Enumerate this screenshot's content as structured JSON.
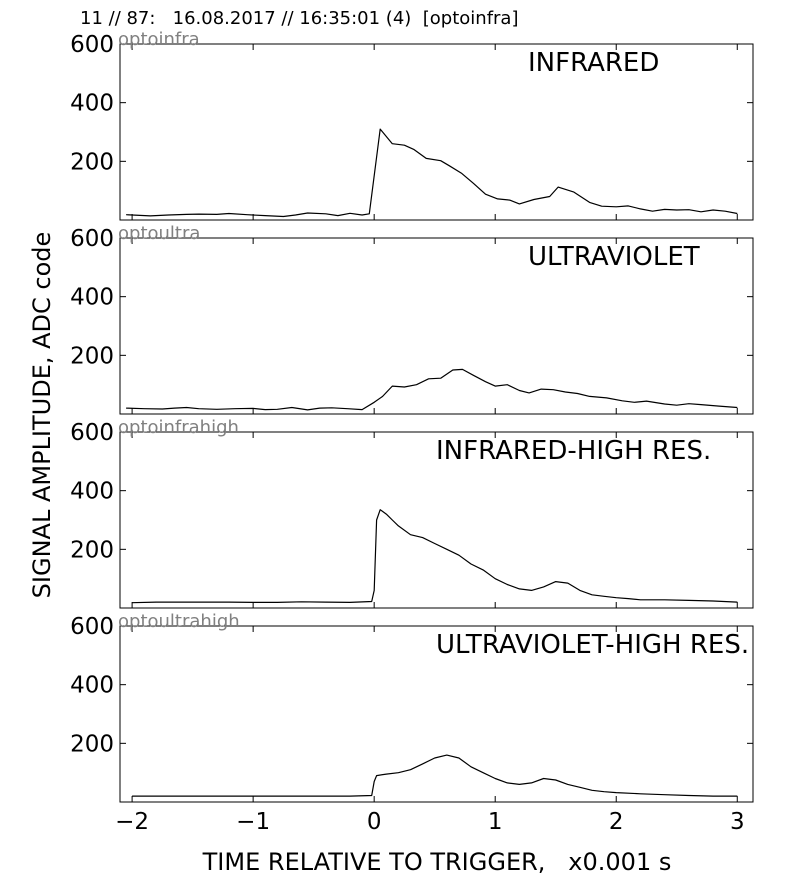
{
  "header": "11 // 87:   16.08.2017 // 16:35:01 (4)  [optoinfra]",
  "chart_data": {
    "type": "line",
    "xlabel": "TIME RELATIVE TO TRIGGER,   x0.001 s",
    "ylabel": "SIGNAL AMPLITUDE,  ADC code",
    "xlim": [
      -2.1,
      3.13
    ],
    "ylim": [
      0,
      600
    ],
    "xticks": [
      -2,
      -1,
      0,
      1,
      2,
      3
    ],
    "xtick_labels": [
      "−2",
      "−1",
      "0",
      "1",
      "2",
      "3"
    ],
    "yticks": [
      200,
      400,
      600
    ],
    "ytick_labels": [
      "200",
      "400",
      "600"
    ],
    "grid": false,
    "panels": [
      {
        "source": "optoinfra",
        "title": "INFRARED",
        "series": [
          {
            "x": [
              -2.05,
              -1.85,
              -1.7,
              -1.55,
              -1.45,
              -1.3,
              -1.2,
              -1.05,
              -0.9,
              -0.75,
              -0.65,
              -0.55,
              -0.4,
              -0.3,
              -0.2,
              -0.1,
              -0.04,
              0.05,
              0.15,
              0.25,
              0.33,
              0.43,
              0.55,
              0.62,
              0.72,
              0.82,
              0.92,
              1.02,
              1.12,
              1.2,
              1.32,
              1.45,
              1.52,
              1.65,
              1.78,
              1.88,
              2.0,
              2.1,
              2.2,
              2.3,
              2.4,
              2.5,
              2.6,
              2.7,
              2.8,
              2.9,
              3.0
            ],
            "y": [
              18,
              14,
              17,
              19,
              20,
              19,
              22,
              18,
              15,
              12,
              17,
              24,
              21,
              15,
              23,
              17,
              21,
              310,
              260,
              255,
              240,
              210,
              202,
              185,
              160,
              125,
              88,
              72,
              68,
              55,
              70,
              80,
              112,
              95,
              60,
              47,
              45,
              48,
              38,
              30,
              36,
              34,
              35,
              28,
              34,
              30,
              22
            ]
          }
        ]
      },
      {
        "source": "optoultra",
        "title": "ULTRAVIOLET",
        "series": [
          {
            "x": [
              -2.05,
              -1.9,
              -1.75,
              -1.65,
              -1.55,
              -1.45,
              -1.3,
              -1.15,
              -1.0,
              -0.9,
              -0.8,
              -0.68,
              -0.55,
              -0.45,
              -0.35,
              -0.22,
              -0.1,
              0.0,
              0.07,
              0.15,
              0.25,
              0.35,
              0.45,
              0.55,
              0.65,
              0.73,
              0.82,
              0.92,
              1.0,
              1.1,
              1.2,
              1.28,
              1.38,
              1.48,
              1.58,
              1.68,
              1.78,
              1.92,
              2.05,
              2.15,
              2.25,
              2.4,
              2.5,
              2.6,
              2.7,
              2.85,
              3.0
            ],
            "y": [
              20,
              18,
              17,
              20,
              22,
              18,
              16,
              18,
              19,
              15,
              16,
              22,
              14,
              20,
              21,
              18,
              15,
              40,
              60,
              95,
              92,
              100,
              120,
              122,
              150,
              152,
              132,
              110,
              95,
              100,
              80,
              72,
              85,
              83,
              75,
              70,
              60,
              55,
              45,
              40,
              44,
              34,
              30,
              35,
              32,
              27,
              22
            ]
          }
        ]
      },
      {
        "source": "optoinfrahigh",
        "title": "INFRARED-HIGH RES.",
        "series": [
          {
            "x": [
              -2.0,
              -1.8,
              -1.6,
              -1.4,
              -1.2,
              -1.0,
              -0.8,
              -0.6,
              -0.4,
              -0.2,
              -0.02,
              0.0,
              0.02,
              0.05,
              0.1,
              0.15,
              0.2,
              0.3,
              0.4,
              0.5,
              0.6,
              0.7,
              0.8,
              0.9,
              1.0,
              1.1,
              1.2,
              1.3,
              1.4,
              1.5,
              1.6,
              1.7,
              1.8,
              1.9,
              2.0,
              2.1,
              2.2,
              2.4,
              2.6,
              2.8,
              3.0
            ],
            "y": [
              18,
              20,
              20,
              20,
              20,
              19,
              19,
              21,
              20,
              19,
              22,
              60,
              300,
              335,
              320,
              300,
              280,
              250,
              240,
              220,
              200,
              180,
              150,
              130,
              100,
              80,
              65,
              60,
              72,
              90,
              85,
              60,
              45,
              40,
              35,
              32,
              28,
              28,
              26,
              24,
              20
            ]
          }
        ]
      },
      {
        "source": "optoultrahigh",
        "title": "ULTRAVIOLET-HIGH RES.",
        "series": [
          {
            "x": [
              -2.0,
              -1.8,
              -1.6,
              -1.4,
              -1.2,
              -1.0,
              -0.8,
              -0.6,
              -0.4,
              -0.2,
              -0.02,
              0.0,
              0.02,
              0.1,
              0.2,
              0.3,
              0.4,
              0.5,
              0.6,
              0.7,
              0.8,
              0.9,
              1.0,
              1.1,
              1.2,
              1.3,
              1.4,
              1.5,
              1.6,
              1.7,
              1.8,
              1.9,
              2.0,
              2.2,
              2.4,
              2.6,
              2.8,
              3.0
            ],
            "y": [
              20,
              20,
              20,
              20,
              20,
              20,
              20,
              20,
              20,
              20,
              22,
              70,
              90,
              95,
              100,
              110,
              130,
              150,
              160,
              150,
              120,
              100,
              80,
              65,
              60,
              65,
              80,
              75,
              60,
              50,
              40,
              35,
              32,
              28,
              25,
              22,
              20,
              20
            ]
          }
        ]
      }
    ]
  }
}
